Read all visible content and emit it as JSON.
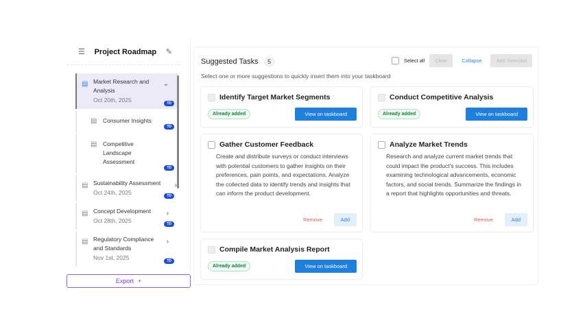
{
  "sidebar": {
    "title": "Project Roadmap",
    "items": [
      {
        "name": "Market Research and Analysis",
        "date": "Oct 20th, 2025",
        "badge": "TD",
        "expanded": true
      },
      {
        "name": "Consumer Insights",
        "badge": "TD"
      },
      {
        "name": "Competitive Landscape Assessment",
        "badge": "TD"
      },
      {
        "name": "Sustainability Assessment",
        "date": "Oct 24th, 2025",
        "badge": "TD"
      },
      {
        "name": "Concept Development",
        "date": "Oct 28th, 2025",
        "badge": "TD"
      },
      {
        "name": "Regulatory Compliance and Standards",
        "date": "Nov 1st, 2025",
        "badge": "TD"
      }
    ],
    "export_label": "Export"
  },
  "main": {
    "title": "Suggested Tasks",
    "count": "5",
    "select_all": "Select all",
    "clear": "Clear",
    "collapse": "Collapse",
    "add_selected": "Add Selected",
    "description": "Select one or more suggestions to quickly insert them into your taskboard",
    "cards": [
      {
        "title": "Identify Target Market Segments",
        "status": "Already added",
        "action": "View on taskboard"
      },
      {
        "title": "Conduct Competitive Analysis",
        "status": "Already added",
        "action": "View on taskboard"
      },
      {
        "title": "Gather Customer Feedback",
        "body": "Create and distribute surveys or conduct interviews with potential customers to gather insights on their preferences, pain points, and expectations. Analyze the collected data to identify trends and insights that can inform the product development.",
        "remove": "Remove",
        "add": "Add"
      },
      {
        "title": "Analyze Market Trends",
        "body": "Research and analyze current market trends that could impact the product's success. This includes examining technological advancements, economic factors, and social trends. Summarize the findings in a report that highlights opportunities and threats.",
        "remove": "Remove",
        "add": "Add"
      },
      {
        "title": "Compile Market Analysis Report",
        "status": "Already added",
        "action": "View on taskboard"
      }
    ]
  },
  "colors": {
    "primary": "#1e7fdc",
    "accent": "#7c3aed",
    "success": "#15803d",
    "danger": "#e05a4e"
  }
}
